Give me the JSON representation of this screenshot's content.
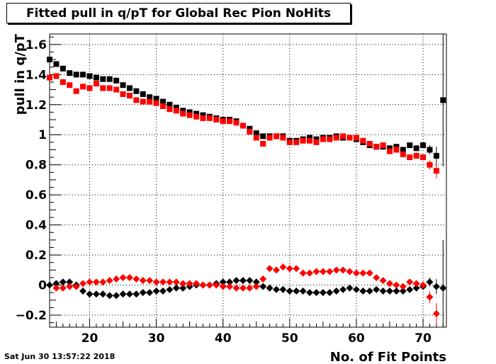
{
  "title": "Fitted pull in q/pT for Global Rec Pion NoHits",
  "timestamp": "Sat Jun 30 13:57:22 2018",
  "chart_data": {
    "type": "scatter",
    "title": "Fitted pull in q/pT for Global Rec Pion NoHits",
    "xlabel": "No. of Fit Points",
    "ylabel": "pull in q/pT",
    "xlim": [
      14,
      73.5
    ],
    "ylim": [
      -0.28,
      1.67
    ],
    "xticks": [
      20,
      30,
      40,
      50,
      60,
      70
    ],
    "yticks": [
      -0.2,
      0,
      0.2,
      0.4,
      0.6,
      0.8,
      1,
      1.2,
      1.4,
      1.6
    ],
    "ytick_labels": [
      "−0.2",
      "0",
      "0.2",
      "0.4",
      "0.6",
      "0.8",
      "1",
      "1.2",
      "1.4",
      "1.6"
    ],
    "grid": true,
    "series": [
      {
        "marker": "square",
        "color": "#000000",
        "x": [
          14,
          15,
          16,
          17,
          18,
          19,
          20,
          21,
          22,
          23,
          24,
          25,
          26,
          27,
          28,
          29,
          30,
          31,
          32,
          33,
          34,
          35,
          36,
          37,
          38,
          39,
          40,
          41,
          42,
          43,
          44,
          45,
          46,
          47,
          48,
          49,
          50,
          51,
          52,
          53,
          54,
          55,
          56,
          57,
          58,
          59,
          60,
          61,
          62,
          63,
          64,
          65,
          66,
          67,
          68,
          69,
          70,
          71,
          72,
          73
        ],
        "y": [
          1.5,
          1.47,
          1.44,
          1.41,
          1.4,
          1.4,
          1.39,
          1.38,
          1.37,
          1.37,
          1.36,
          1.33,
          1.31,
          1.29,
          1.27,
          1.25,
          1.24,
          1.22,
          1.2,
          1.18,
          1.16,
          1.15,
          1.14,
          1.13,
          1.12,
          1.11,
          1.1,
          1.1,
          1.09,
          1.06,
          1.04,
          1.01,
          0.99,
          0.99,
          0.99,
          0.99,
          0.96,
          0.96,
          0.97,
          0.98,
          0.97,
          0.98,
          0.98,
          0.99,
          0.98,
          0.98,
          0.97,
          0.95,
          0.93,
          0.92,
          0.92,
          0.91,
          0.92,
          0.9,
          0.93,
          0.91,
          0.93,
          0.9,
          0.86,
          1.23
        ],
        "err": [
          0,
          0,
          0,
          0,
          0,
          0,
          0,
          0,
          0,
          0,
          0,
          0,
          0,
          0,
          0,
          0,
          0,
          0,
          0,
          0,
          0,
          0,
          0,
          0,
          0,
          0,
          0,
          0,
          0,
          0,
          0,
          0,
          0,
          0,
          0,
          0,
          0,
          0,
          0,
          0,
          0,
          0,
          0,
          0,
          0,
          0,
          0,
          0,
          0,
          0,
          0,
          0,
          0,
          0,
          0,
          0.01,
          0.02,
          0.03,
          0.06,
          0.44
        ]
      },
      {
        "marker": "square",
        "color": "#ff0000",
        "x": [
          14,
          15,
          16,
          17,
          18,
          19,
          20,
          21,
          22,
          23,
          24,
          25,
          26,
          27,
          28,
          29,
          30,
          31,
          32,
          33,
          34,
          35,
          36,
          37,
          38,
          39,
          40,
          41,
          42,
          43,
          44,
          45,
          46,
          47,
          48,
          49,
          50,
          51,
          52,
          53,
          54,
          55,
          56,
          57,
          58,
          59,
          60,
          61,
          62,
          63,
          64,
          65,
          66,
          67,
          68,
          69,
          70,
          71,
          72
        ],
        "y": [
          1.38,
          1.39,
          1.35,
          1.33,
          1.29,
          1.32,
          1.31,
          1.34,
          1.31,
          1.31,
          1.3,
          1.27,
          1.26,
          1.23,
          1.22,
          1.22,
          1.21,
          1.19,
          1.17,
          1.16,
          1.14,
          1.13,
          1.12,
          1.11,
          1.11,
          1.1,
          1.09,
          1.09,
          1.08,
          1.06,
          1.02,
          0.98,
          0.94,
          0.98,
          0.99,
          0.98,
          0.95,
          0.95,
          0.96,
          0.96,
          0.95,
          0.97,
          0.97,
          0.98,
          0.99,
          0.98,
          0.98,
          0.96,
          0.94,
          0.92,
          0.93,
          0.89,
          0.9,
          0.87,
          0.85,
          0.86,
          0.85,
          0.8,
          0.76
        ],
        "err": [
          0,
          0,
          0,
          0,
          0,
          0,
          0,
          0,
          0,
          0,
          0,
          0,
          0,
          0,
          0,
          0,
          0,
          0,
          0,
          0,
          0,
          0,
          0,
          0,
          0,
          0,
          0,
          0,
          0,
          0,
          0,
          0,
          0,
          0,
          0,
          0,
          0,
          0,
          0,
          0,
          0,
          0,
          0,
          0,
          0,
          0,
          0,
          0,
          0,
          0,
          0,
          0,
          0,
          0.01,
          0.01,
          0.02,
          0.02,
          0.03,
          0.05
        ]
      },
      {
        "marker": "diamond",
        "color": "#000000",
        "x": [
          14,
          15,
          16,
          17,
          18,
          19,
          20,
          21,
          22,
          23,
          24,
          25,
          26,
          27,
          28,
          29,
          30,
          31,
          32,
          33,
          34,
          35,
          36,
          37,
          38,
          39,
          40,
          41,
          42,
          43,
          44,
          45,
          46,
          47,
          48,
          49,
          50,
          51,
          52,
          53,
          54,
          55,
          56,
          57,
          58,
          59,
          60,
          61,
          62,
          63,
          64,
          65,
          66,
          67,
          68,
          69,
          70,
          71,
          72,
          73
        ],
        "y": [
          0.0,
          0.01,
          0.02,
          0.02,
          0.0,
          -0.04,
          -0.06,
          -0.06,
          -0.06,
          -0.07,
          -0.07,
          -0.06,
          -0.06,
          -0.06,
          -0.05,
          -0.05,
          -0.04,
          -0.04,
          -0.03,
          -0.02,
          -0.02,
          -0.01,
          0.0,
          0.0,
          0.0,
          0.01,
          0.02,
          0.02,
          0.03,
          0.03,
          0.03,
          0.02,
          -0.01,
          -0.02,
          -0.03,
          -0.03,
          -0.04,
          -0.04,
          -0.04,
          -0.05,
          -0.05,
          -0.05,
          -0.05,
          -0.04,
          -0.03,
          -0.02,
          -0.03,
          -0.04,
          -0.04,
          -0.03,
          -0.04,
          -0.04,
          -0.04,
          -0.04,
          -0.03,
          -0.02,
          -0.01,
          0.02,
          -0.01,
          -0.02
        ],
        "err": [
          0,
          0,
          0,
          0,
          0,
          0,
          0,
          0,
          0,
          0,
          0,
          0,
          0,
          0,
          0,
          0,
          0,
          0,
          0,
          0,
          0,
          0,
          0,
          0,
          0,
          0,
          0,
          0,
          0,
          0,
          0,
          0,
          0,
          0,
          0,
          0,
          0,
          0,
          0,
          0,
          0,
          0,
          0,
          0,
          0,
          0,
          0,
          0,
          0,
          0,
          0,
          0,
          0,
          0,
          0,
          0.01,
          0.02,
          0.03,
          0.05,
          0.32
        ]
      },
      {
        "marker": "diamond",
        "color": "#ff0000",
        "x": [
          15,
          16,
          17,
          18,
          19,
          20,
          21,
          22,
          23,
          24,
          25,
          26,
          27,
          28,
          29,
          30,
          31,
          32,
          33,
          34,
          35,
          36,
          37,
          38,
          39,
          40,
          41,
          42,
          43,
          44,
          45,
          46,
          47,
          48,
          49,
          50,
          51,
          52,
          53,
          54,
          55,
          56,
          57,
          58,
          59,
          60,
          61,
          62,
          63,
          64,
          65,
          66,
          67,
          68,
          69,
          70,
          71,
          72
        ],
        "y": [
          -0.02,
          -0.02,
          -0.01,
          -0.01,
          0.01,
          0.02,
          0.02,
          0.02,
          0.03,
          0.04,
          0.05,
          0.05,
          0.04,
          0.03,
          0.03,
          0.02,
          0.02,
          0.02,
          0.02,
          0.01,
          0.01,
          0.01,
          0.0,
          0.0,
          0.0,
          -0.01,
          -0.01,
          -0.02,
          -0.02,
          -0.02,
          -0.01,
          0.04,
          0.11,
          0.1,
          0.12,
          0.11,
          0.11,
          0.08,
          0.08,
          0.09,
          0.09,
          0.09,
          0.1,
          0.1,
          0.09,
          0.08,
          0.08,
          0.08,
          0.05,
          0.03,
          0.01,
          0.0,
          -0.01,
          0.02,
          0.01,
          0.0,
          -0.08,
          -0.19
        ],
        "err": [
          0,
          0,
          0,
          0,
          0,
          0,
          0,
          0,
          0,
          0,
          0,
          0,
          0,
          0,
          0,
          0,
          0,
          0,
          0,
          0,
          0,
          0,
          0,
          0,
          0,
          0,
          0,
          0,
          0,
          0,
          0,
          0,
          0,
          0,
          0,
          0,
          0,
          0,
          0,
          0,
          0,
          0,
          0,
          0,
          0,
          0,
          0,
          0,
          0,
          0,
          0,
          0,
          0.01,
          0.01,
          0.01,
          0.02,
          0.04,
          0.07
        ]
      }
    ]
  }
}
